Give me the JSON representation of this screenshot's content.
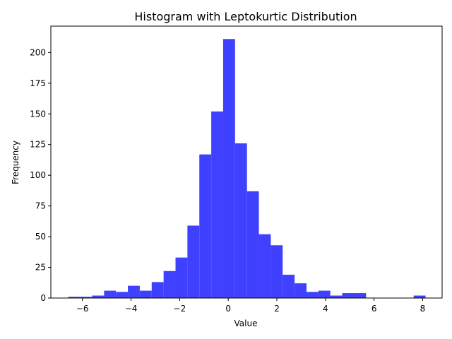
{
  "chart_data": {
    "type": "histogram",
    "title": "Histogram with Leptokurtic Distribution",
    "xlabel": "Value",
    "ylabel": "Frequency",
    "xlim": [
      -7.3,
      8.8
    ],
    "ylim": [
      0,
      221.5
    ],
    "xticks": [
      -6,
      -4,
      -2,
      0,
      2,
      4,
      6,
      8
    ],
    "xtick_labels": [
      "−6",
      "−4",
      "−2",
      "0",
      "2",
      "4",
      "6",
      "8"
    ],
    "yticks": [
      0,
      25,
      50,
      75,
      100,
      125,
      150,
      175,
      200
    ],
    "yticks_labels": [
      "0",
      "25",
      "50",
      "75",
      "100",
      "125",
      "150",
      "175",
      "200"
    ],
    "bin_edges": [
      -6.58,
      -6.09,
      -5.6,
      -5.11,
      -4.62,
      -4.13,
      -3.64,
      -3.15,
      -2.66,
      -2.17,
      -1.68,
      -1.19,
      -0.7,
      -0.21,
      0.28,
      0.77,
      1.26,
      1.75,
      2.24,
      2.73,
      3.22,
      3.71,
      4.2,
      4.69,
      5.18,
      5.67,
      6.16,
      6.65,
      7.14,
      7.63,
      8.12
    ],
    "counts": [
      1,
      1,
      2,
      6,
      5,
      10,
      6,
      13,
      22,
      33,
      59,
      117,
      152,
      211,
      126,
      87,
      52,
      43,
      19,
      12,
      5,
      6,
      2,
      4,
      4,
      0,
      0,
      0,
      0,
      2
    ],
    "bar_color": "#4040ff",
    "grid": false,
    "legend": false
  }
}
